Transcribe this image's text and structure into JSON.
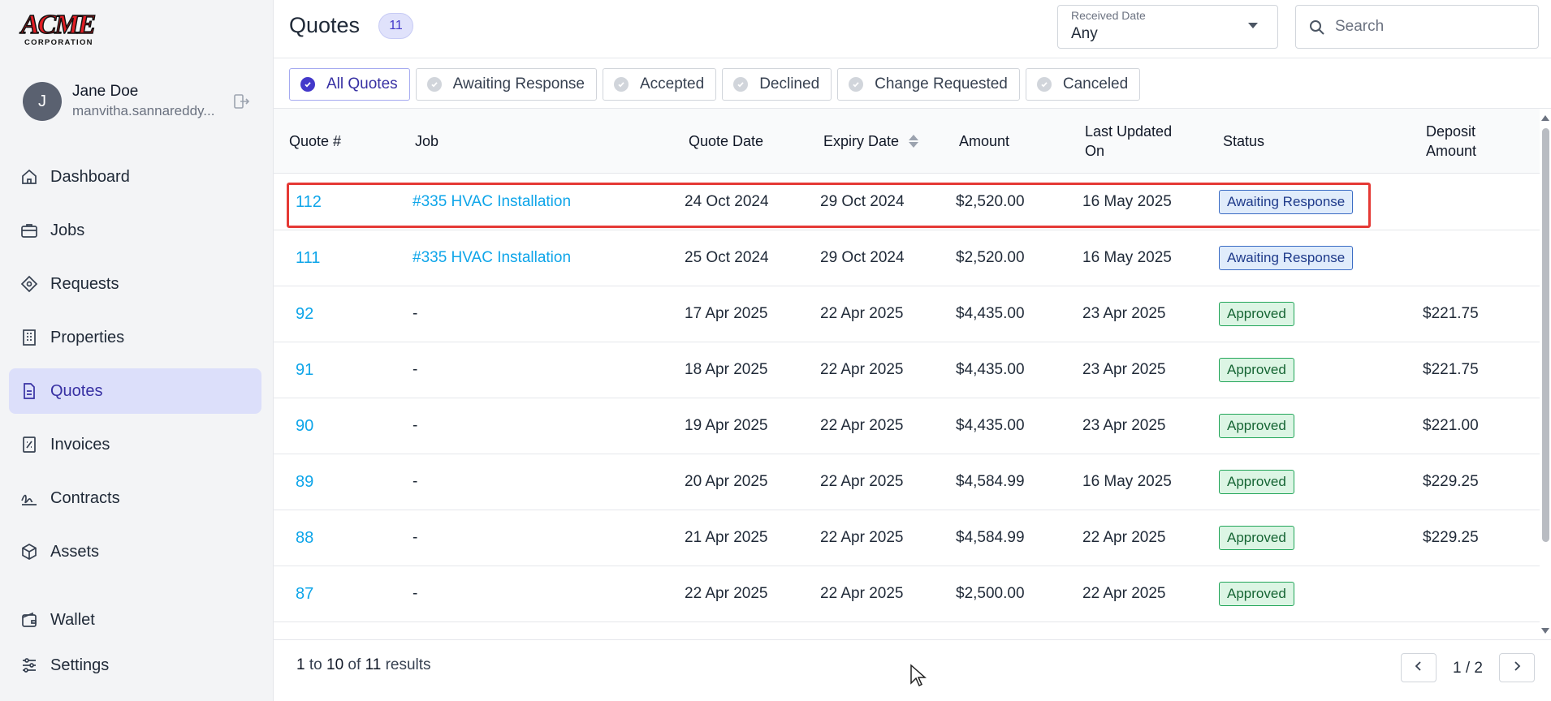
{
  "brand": {
    "logo_text": "ACME",
    "logo_subtext": "CORPORATION",
    "accent": "#4338ca",
    "logo_color": "#e11d24"
  },
  "user": {
    "initial": "J",
    "name": "Jane Doe",
    "email": "manvitha.sannareddy..."
  },
  "nav": {
    "items": [
      {
        "label": "Dashboard",
        "icon": "home-icon"
      },
      {
        "label": "Jobs",
        "icon": "briefcase-icon"
      },
      {
        "label": "Requests",
        "icon": "diamond-icon"
      },
      {
        "label": "Properties",
        "icon": "building-icon"
      },
      {
        "label": "Quotes",
        "icon": "document-icon",
        "active": true
      },
      {
        "label": "Invoices",
        "icon": "invoice-icon"
      },
      {
        "label": "Contracts",
        "icon": "signature-icon"
      },
      {
        "label": "Assets",
        "icon": "cube-icon"
      }
    ],
    "bottom": [
      {
        "label": "Wallet",
        "icon": "wallet-icon"
      },
      {
        "label": "Settings",
        "icon": "sliders-icon"
      }
    ]
  },
  "header": {
    "title": "Quotes",
    "count": "11",
    "date_filter": {
      "label": "Received Date",
      "value": "Any"
    },
    "search": {
      "placeholder": "Search",
      "value": ""
    }
  },
  "filters": [
    {
      "label": "All Quotes",
      "active": true
    },
    {
      "label": "Awaiting Response"
    },
    {
      "label": "Accepted"
    },
    {
      "label": "Declined"
    },
    {
      "label": "Change Requested"
    },
    {
      "label": "Canceled"
    }
  ],
  "table": {
    "columns": {
      "quote": "Quote #",
      "job": "Job",
      "quote_date": "Quote Date",
      "expiry_date": "Expiry Date",
      "amount": "Amount",
      "last_updated_1": "Last Updated",
      "last_updated_2": "On",
      "status": "Status",
      "deposit_1": "Deposit",
      "deposit_2": "Amount"
    },
    "rows": [
      {
        "quote": "112",
        "job": "#335 HVAC Installation",
        "quote_date": "24 Oct 2024",
        "expiry_date": "29 Oct 2024",
        "amount": "$2,520.00",
        "last_updated": "16 May 2025",
        "status": "Awaiting Response",
        "status_type": "awaiting",
        "deposit": ""
      },
      {
        "quote": "111",
        "job": "#335 HVAC Installation",
        "quote_date": "25 Oct 2024",
        "expiry_date": "29 Oct 2024",
        "amount": "$2,520.00",
        "last_updated": "16 May 2025",
        "status": "Awaiting Response",
        "status_type": "awaiting",
        "deposit": ""
      },
      {
        "quote": "92",
        "job": "-",
        "quote_date": "17 Apr 2025",
        "expiry_date": "22 Apr 2025",
        "amount": "$4,435.00",
        "last_updated": "23 Apr 2025",
        "status": "Approved",
        "status_type": "approved",
        "deposit": "$221.75"
      },
      {
        "quote": "91",
        "job": "-",
        "quote_date": "18 Apr 2025",
        "expiry_date": "22 Apr 2025",
        "amount": "$4,435.00",
        "last_updated": "23 Apr 2025",
        "status": "Approved",
        "status_type": "approved",
        "deposit": "$221.75"
      },
      {
        "quote": "90",
        "job": "-",
        "quote_date": "19 Apr 2025",
        "expiry_date": "22 Apr 2025",
        "amount": "$4,435.00",
        "last_updated": "23 Apr 2025",
        "status": "Approved",
        "status_type": "approved",
        "deposit": "$221.00"
      },
      {
        "quote": "89",
        "job": "-",
        "quote_date": "20 Apr 2025",
        "expiry_date": "22 Apr 2025",
        "amount": "$4,584.99",
        "last_updated": "16 May 2025",
        "status": "Approved",
        "status_type": "approved",
        "deposit": "$229.25"
      },
      {
        "quote": "88",
        "job": "-",
        "quote_date": "21 Apr 2025",
        "expiry_date": "22 Apr 2025",
        "amount": "$4,584.99",
        "last_updated": "22 Apr 2025",
        "status": "Approved",
        "status_type": "approved",
        "deposit": "$229.25"
      },
      {
        "quote": "87",
        "job": "-",
        "quote_date": "22 Apr 2025",
        "expiry_date": "22 Apr 2025",
        "amount": "$2,500.00",
        "last_updated": "22 Apr 2025",
        "status": "Approved",
        "status_type": "approved",
        "deposit": ""
      }
    ]
  },
  "footer": {
    "results_from": "1",
    "results_to_word": "to",
    "results_to": "10",
    "results_of_word": "of",
    "results_total": "11",
    "results_word": "results",
    "page": "1 / 2"
  }
}
